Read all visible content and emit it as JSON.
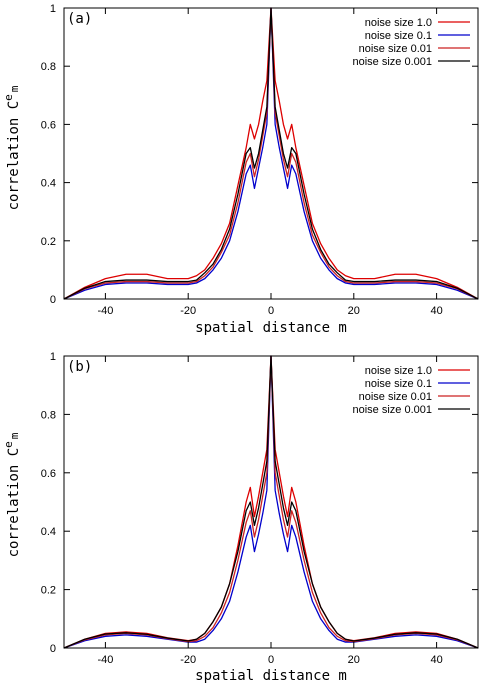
{
  "chart_data": [
    {
      "type": "line",
      "panel_label": "(a)",
      "xlabel": "spatial distance m",
      "ylabel": {
        "base": "correlation C",
        "sup": "e",
        "sub": "m"
      },
      "xlim": [
        -50,
        50
      ],
      "ylim": [
        0,
        1
      ],
      "xticks": [
        -40,
        -20,
        0,
        20,
        40
      ],
      "yticks": [
        0,
        0.2,
        0.4,
        0.6,
        0.8,
        1
      ],
      "grid": false,
      "legend": "top-right",
      "series": [
        {
          "name": "noise size 1.0",
          "color": "#dd0000",
          "x": [
            -50,
            -45,
            -40,
            -35,
            -30,
            -25,
            -20,
            -18,
            -16,
            -14,
            -12,
            -10,
            -8,
            -6,
            -5,
            -4,
            -3,
            -2,
            -1,
            0,
            1,
            2,
            3,
            4,
            5,
            6,
            8,
            10,
            12,
            14,
            16,
            18,
            20,
            25,
            30,
            35,
            40,
            45,
            50
          ],
          "y": [
            0,
            0.04,
            0.07,
            0.085,
            0.085,
            0.07,
            0.07,
            0.08,
            0.1,
            0.14,
            0.19,
            0.26,
            0.39,
            0.52,
            0.6,
            0.55,
            0.6,
            0.68,
            0.75,
            1,
            0.75,
            0.68,
            0.6,
            0.55,
            0.6,
            0.52,
            0.39,
            0.26,
            0.19,
            0.14,
            0.1,
            0.08,
            0.07,
            0.07,
            0.085,
            0.085,
            0.07,
            0.04,
            0
          ]
        },
        {
          "name": "noise size 0.1",
          "color": "#0000cc",
          "x": [
            -50,
            -45,
            -40,
            -35,
            -30,
            -25,
            -20,
            -18,
            -16,
            -14,
            -12,
            -10,
            -8,
            -6,
            -5,
            -4,
            -3,
            -2,
            -1,
            0,
            1,
            2,
            3,
            4,
            5,
            6,
            8,
            10,
            12,
            14,
            16,
            18,
            20,
            25,
            30,
            35,
            40,
            45,
            50
          ],
          "y": [
            0,
            0.03,
            0.05,
            0.055,
            0.055,
            0.05,
            0.05,
            0.055,
            0.07,
            0.1,
            0.14,
            0.2,
            0.3,
            0.43,
            0.46,
            0.38,
            0.45,
            0.52,
            0.6,
            1,
            0.6,
            0.52,
            0.45,
            0.38,
            0.46,
            0.43,
            0.3,
            0.2,
            0.14,
            0.1,
            0.07,
            0.055,
            0.05,
            0.05,
            0.055,
            0.055,
            0.05,
            0.03,
            0
          ]
        },
        {
          "name": "noise size 0.01",
          "color": "#cc2222",
          "x": [
            -50,
            -45,
            -40,
            -35,
            -30,
            -25,
            -20,
            -18,
            -16,
            -14,
            -12,
            -10,
            -8,
            -6,
            -5,
            -4,
            -3,
            -2,
            -1,
            0,
            1,
            2,
            3,
            4,
            5,
            6,
            8,
            10,
            12,
            14,
            16,
            18,
            20,
            25,
            30,
            35,
            40,
            45,
            50
          ],
          "y": [
            0,
            0.035,
            0.055,
            0.06,
            0.06,
            0.055,
            0.055,
            0.06,
            0.08,
            0.11,
            0.16,
            0.22,
            0.33,
            0.47,
            0.5,
            0.42,
            0.48,
            0.56,
            0.64,
            1,
            0.64,
            0.56,
            0.48,
            0.42,
            0.5,
            0.47,
            0.33,
            0.22,
            0.16,
            0.11,
            0.08,
            0.06,
            0.055,
            0.055,
            0.06,
            0.06,
            0.055,
            0.035,
            0
          ]
        },
        {
          "name": "noise size 0.001",
          "color": "#000000",
          "x": [
            -50,
            -45,
            -40,
            -35,
            -30,
            -25,
            -20,
            -18,
            -16,
            -14,
            -12,
            -10,
            -8,
            -6,
            -5,
            -4,
            -3,
            -2,
            -1,
            0,
            1,
            2,
            3,
            4,
            5,
            6,
            8,
            10,
            12,
            14,
            16,
            18,
            20,
            25,
            30,
            35,
            40,
            45,
            50
          ],
          "y": [
            0,
            0.037,
            0.06,
            0.065,
            0.065,
            0.06,
            0.06,
            0.065,
            0.09,
            0.12,
            0.17,
            0.24,
            0.36,
            0.5,
            0.52,
            0.45,
            0.5,
            0.58,
            0.66,
            1,
            0.66,
            0.58,
            0.5,
            0.45,
            0.52,
            0.5,
            0.36,
            0.24,
            0.17,
            0.12,
            0.09,
            0.065,
            0.06,
            0.06,
            0.065,
            0.065,
            0.06,
            0.037,
            0
          ]
        }
      ]
    },
    {
      "type": "line",
      "panel_label": "(b)",
      "xlabel": "spatial distance m",
      "ylabel": {
        "base": "correlation C",
        "sup": "e",
        "sub": "m"
      },
      "xlim": [
        -50,
        50
      ],
      "ylim": [
        0,
        1
      ],
      "xticks": [
        -40,
        -20,
        0,
        20,
        40
      ],
      "yticks": [
        0,
        0.2,
        0.4,
        0.6,
        0.8,
        1
      ],
      "grid": false,
      "legend": "top-right",
      "series": [
        {
          "name": "noise size 1.0",
          "color": "#dd0000",
          "x": [
            -50,
            -45,
            -40,
            -35,
            -30,
            -25,
            -20,
            -18,
            -16,
            -14,
            -12,
            -10,
            -8,
            -6,
            -5,
            -4,
            -3,
            -2,
            -1,
            0,
            1,
            2,
            3,
            4,
            5,
            6,
            8,
            10,
            12,
            14,
            16,
            18,
            20,
            25,
            30,
            35,
            40,
            45,
            50
          ],
          "y": [
            0,
            0.03,
            0.05,
            0.055,
            0.05,
            0.035,
            0.025,
            0.03,
            0.05,
            0.09,
            0.14,
            0.22,
            0.35,
            0.5,
            0.55,
            0.45,
            0.52,
            0.6,
            0.68,
            1,
            0.68,
            0.6,
            0.52,
            0.45,
            0.55,
            0.5,
            0.35,
            0.22,
            0.14,
            0.09,
            0.05,
            0.03,
            0.025,
            0.035,
            0.05,
            0.055,
            0.05,
            0.03,
            0
          ]
        },
        {
          "name": "noise size 0.1",
          "color": "#0000cc",
          "x": [
            -50,
            -45,
            -40,
            -35,
            -30,
            -25,
            -20,
            -18,
            -16,
            -14,
            -12,
            -10,
            -8,
            -6,
            -5,
            -4,
            -3,
            -2,
            -1,
            0,
            1,
            2,
            3,
            4,
            5,
            6,
            8,
            10,
            12,
            14,
            16,
            18,
            20,
            25,
            30,
            35,
            40,
            45,
            50
          ],
          "y": [
            0,
            0.025,
            0.04,
            0.045,
            0.04,
            0.03,
            0.02,
            0.02,
            0.03,
            0.06,
            0.1,
            0.16,
            0.26,
            0.38,
            0.42,
            0.33,
            0.39,
            0.46,
            0.54,
            1,
            0.54,
            0.46,
            0.39,
            0.33,
            0.42,
            0.38,
            0.26,
            0.16,
            0.1,
            0.06,
            0.03,
            0.02,
            0.02,
            0.03,
            0.04,
            0.045,
            0.04,
            0.025,
            0
          ]
        },
        {
          "name": "noise size 0.01",
          "color": "#cc2222",
          "x": [
            -50,
            -45,
            -40,
            -35,
            -30,
            -25,
            -20,
            -18,
            -16,
            -14,
            -12,
            -10,
            -8,
            -6,
            -5,
            -4,
            -3,
            -2,
            -1,
            0,
            1,
            2,
            3,
            4,
            5,
            6,
            8,
            10,
            12,
            14,
            16,
            18,
            20,
            25,
            30,
            35,
            40,
            45,
            50
          ],
          "y": [
            0,
            0.028,
            0.045,
            0.05,
            0.045,
            0.032,
            0.022,
            0.025,
            0.04,
            0.07,
            0.12,
            0.19,
            0.3,
            0.43,
            0.47,
            0.38,
            0.44,
            0.52,
            0.6,
            1,
            0.6,
            0.52,
            0.44,
            0.38,
            0.47,
            0.43,
            0.3,
            0.19,
            0.12,
            0.07,
            0.04,
            0.025,
            0.022,
            0.032,
            0.045,
            0.05,
            0.045,
            0.028,
            0
          ]
        },
        {
          "name": "noise size 0.001",
          "color": "#000000",
          "x": [
            -50,
            -45,
            -40,
            -35,
            -30,
            -25,
            -20,
            -18,
            -16,
            -14,
            -12,
            -10,
            -8,
            -6,
            -5,
            -4,
            -3,
            -2,
            -1,
            0,
            1,
            2,
            3,
            4,
            5,
            6,
            8,
            10,
            12,
            14,
            16,
            18,
            20,
            25,
            30,
            35,
            40,
            45,
            50
          ],
          "y": [
            0,
            0.03,
            0.048,
            0.052,
            0.047,
            0.034,
            0.024,
            0.03,
            0.05,
            0.09,
            0.14,
            0.22,
            0.33,
            0.47,
            0.5,
            0.42,
            0.48,
            0.56,
            0.64,
            1,
            0.64,
            0.56,
            0.48,
            0.42,
            0.5,
            0.47,
            0.33,
            0.22,
            0.14,
            0.09,
            0.05,
            0.03,
            0.024,
            0.034,
            0.047,
            0.052,
            0.048,
            0.03,
            0
          ]
        }
      ]
    }
  ]
}
